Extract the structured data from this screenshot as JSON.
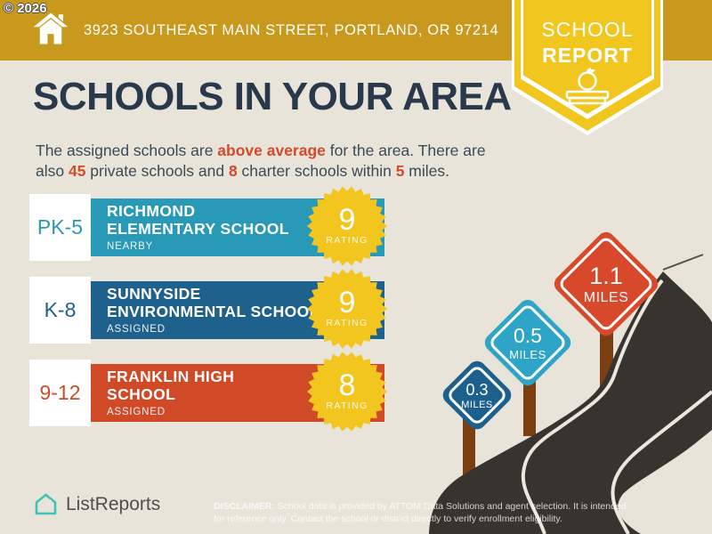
{
  "copyright": "© 2026",
  "header": {
    "address": "3923 SOUTHEAST MAIN STREET, PORTLAND, OR 97214",
    "badge_line1": "SCHOOL",
    "badge_line2": "REPORT"
  },
  "title": "SCHOOLS IN YOUR AREA",
  "intro": {
    "s1": "The assigned schools are ",
    "hl1": "above average",
    "s2": " for the area. There are",
    "s3": "also ",
    "num_private": "45",
    "s4": " private schools and ",
    "num_charter": "8",
    "s5": " charter schools within ",
    "num_miles": "5",
    "s6": " miles."
  },
  "schools": [
    {
      "grades": "PK-5",
      "name_line1": "RICHMOND",
      "name_line2": "ELEMENTARY SCHOOL",
      "status": "NEARBY",
      "rating": "9",
      "rating_label": "RATING",
      "color": "#2899b7"
    },
    {
      "grades": "K-8",
      "name_line1": "SUNNYSIDE",
      "name_line2": "ENVIRONMENTAL SCHOOL",
      "status": "ASSIGNED",
      "rating": "9",
      "rating_label": "RATING",
      "color": "#1d618c"
    },
    {
      "grades": "9-12",
      "name_line1": "FRANKLIN HIGH",
      "name_line2": "SCHOOL",
      "status": "ASSIGNED",
      "rating": "8",
      "rating_label": "RATING",
      "color": "#d04a28"
    }
  ],
  "signs": [
    {
      "distance": "0.3",
      "unit": "MILES",
      "color": "#1d608b"
    },
    {
      "distance": "0.5",
      "unit": "MILES",
      "color": "#2ea4c6"
    },
    {
      "distance": "1.1",
      "unit": "MILES",
      "color": "#d8482a"
    }
  ],
  "footer": {
    "brand": "ListReports",
    "disclaimer_label": "DISCLAIMER:",
    "disclaimer_text": " School data is provided by ATTOM Data Solutions and agent selection. It is intended for reference only. Contact the school or district directly to verify enrollment eligibility."
  },
  "colors": {
    "banner_gold": "#c9991d",
    "badge_yellow": "#f0c61f",
    "starburst_yellow": "#f2c51f",
    "background_beige": "#e9e4da",
    "title_navy": "#27394a",
    "accent_orange": "#d44a2a",
    "road_charcoal": "#37332e",
    "post_brown": "#7b3f12",
    "logo_teal": "#3ec3b4"
  }
}
